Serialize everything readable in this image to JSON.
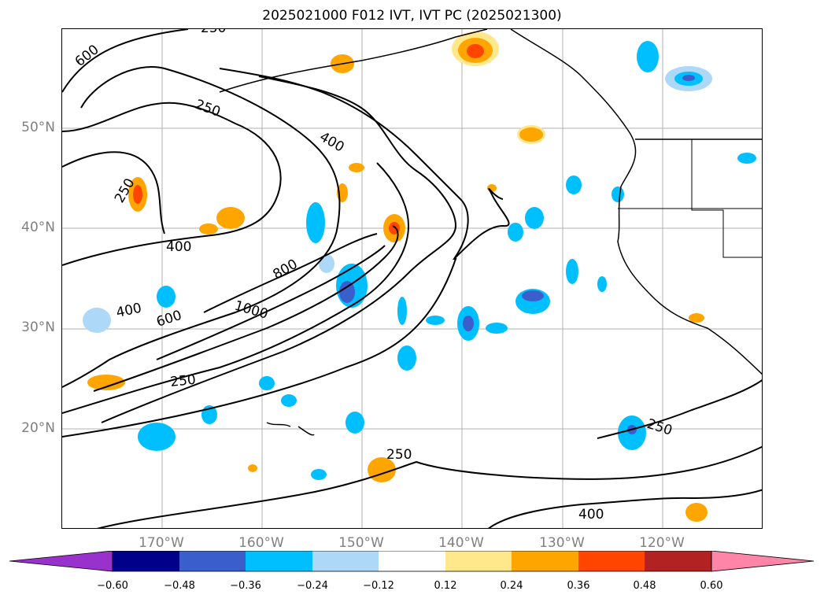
{
  "title": "2025021000 F012 IVT, IVT PC (2025021300)",
  "map": {
    "lat_labels": [
      "50°N",
      "40°N",
      "30°N",
      "20°N"
    ],
    "lon_labels": [
      "170°W",
      "160°W",
      "150°W",
      "140°W",
      "130°W",
      "120°W"
    ],
    "extent": {
      "lon": [
        -180,
        -110
      ],
      "lat": [
        10,
        60
      ]
    },
    "gridlines": true,
    "contour_labels": [
      "250",
      "600",
      "250",
      "400",
      "250",
      "400",
      "800",
      "400",
      "1000",
      "600",
      "250",
      "250",
      "250",
      "400"
    ]
  },
  "colorbar": {
    "ticks": [
      "−0.60",
      "−0.48",
      "−0.36",
      "−0.24",
      "−0.12",
      "0.12",
      "0.24",
      "0.36",
      "0.48",
      "0.60"
    ],
    "colors": [
      "#9932cc",
      "#00008b",
      "#3a5fcd",
      "#00bfff",
      "#add8f7",
      "#ffffff",
      "#ffe88c",
      "#ffa500",
      "#ff4500",
      "#b22222",
      "#ff85a8"
    ]
  }
}
